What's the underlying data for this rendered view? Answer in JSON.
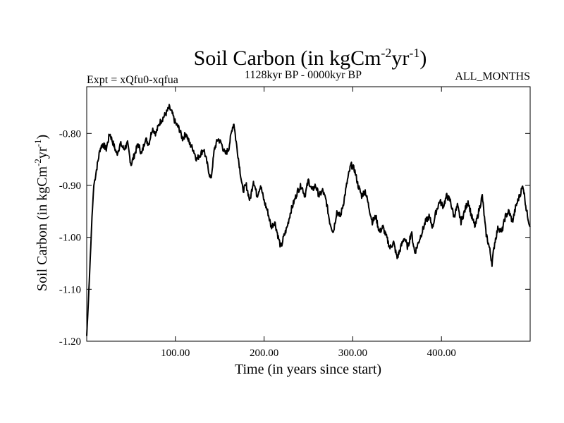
{
  "chart_data": {
    "type": "line",
    "title": "Soil Carbon (in kgCm",
    "title_sup1": "-2",
    "title_mid": "yr",
    "title_sup2": "-1",
    "title_end": ")",
    "subtitle_left": "Expt = xQfu0-xqfua",
    "subtitle_center": "1128kyr BP - 0000kyr BP",
    "subtitle_right": "ALL_MONTHS",
    "xlabel": "Time (in years since start)",
    "ylabel": "Soil Carbon (in kgCm",
    "ylabel_sup1": "-2",
    "ylabel_mid": "yr",
    "ylabel_sup2": "-1",
    "ylabel_end": ")",
    "xlim": [
      0,
      500
    ],
    "ylim": [
      -1.2,
      -0.71
    ],
    "x_ticks": [
      100,
      200,
      300,
      400
    ],
    "x_tick_labels": [
      "100.00",
      "200.00",
      "300.00",
      "400.00"
    ],
    "y_ticks": [
      -1.2,
      -1.1,
      -1.0,
      -0.9,
      -0.8
    ],
    "y_tick_labels": [
      "-1.20",
      "-1.10",
      "-1.00",
      "-0.90",
      "-0.80"
    ],
    "grid": false,
    "line_color": "#000000",
    "series": [
      {
        "name": "Soil Carbon",
        "x": [
          0,
          2,
          4,
          6,
          8,
          10,
          12,
          15,
          18,
          22,
          26,
          30,
          34,
          38,
          42,
          46,
          50,
          54,
          58,
          62,
          66,
          70,
          74,
          78,
          82,
          86,
          90,
          93,
          96,
          100,
          104,
          108,
          112,
          116,
          120,
          124,
          128,
          132,
          136,
          140,
          144,
          148,
          152,
          156,
          160,
          164,
          166,
          168,
          172,
          176,
          180,
          184,
          188,
          192,
          196,
          200,
          204,
          208,
          212,
          216,
          219,
          222,
          226,
          230,
          234,
          238,
          242,
          246,
          250,
          254,
          258,
          262,
          266,
          270,
          274,
          278,
          282,
          286,
          290,
          294,
          298,
          302,
          306,
          310,
          314,
          318,
          322,
          326,
          330,
          334,
          338,
          342,
          346,
          350,
          354,
          358,
          362,
          366,
          370,
          374,
          378,
          382,
          386,
          390,
          394,
          398,
          402,
          406,
          410,
          414,
          418,
          422,
          426,
          430,
          434,
          438,
          442,
          446,
          450,
          454,
          457,
          460,
          464,
          468,
          472,
          476,
          480,
          484,
          488,
          492,
          496,
          500
        ],
        "values": [
          -1.19,
          -1.12,
          -1.04,
          -0.96,
          -0.9,
          -0.88,
          -0.86,
          -0.83,
          -0.82,
          -0.83,
          -0.8,
          -0.82,
          -0.84,
          -0.82,
          -0.83,
          -0.82,
          -0.86,
          -0.84,
          -0.82,
          -0.84,
          -0.81,
          -0.82,
          -0.79,
          -0.8,
          -0.78,
          -0.77,
          -0.76,
          -0.75,
          -0.76,
          -0.78,
          -0.79,
          -0.81,
          -0.8,
          -0.82,
          -0.83,
          -0.85,
          -0.84,
          -0.83,
          -0.86,
          -0.89,
          -0.83,
          -0.81,
          -0.82,
          -0.84,
          -0.83,
          -0.79,
          -0.78,
          -0.81,
          -0.86,
          -0.91,
          -0.9,
          -0.93,
          -0.89,
          -0.92,
          -0.9,
          -0.93,
          -0.95,
          -0.98,
          -0.97,
          -1.0,
          -1.02,
          -1.0,
          -0.98,
          -0.95,
          -0.93,
          -0.91,
          -0.9,
          -0.92,
          -0.89,
          -0.91,
          -0.9,
          -0.92,
          -0.91,
          -0.93,
          -0.97,
          -0.99,
          -0.95,
          -0.96,
          -0.93,
          -0.89,
          -0.86,
          -0.87,
          -0.9,
          -0.92,
          -0.91,
          -0.94,
          -0.97,
          -0.96,
          -0.99,
          -0.98,
          -1.0,
          -1.02,
          -1.01,
          -1.04,
          -1.02,
          -1.0,
          -1.02,
          -0.99,
          -1.03,
          -1.01,
          -0.99,
          -0.97,
          -0.96,
          -0.98,
          -0.95,
          -0.93,
          -0.94,
          -0.92,
          -0.93,
          -0.96,
          -0.94,
          -0.97,
          -0.95,
          -0.93,
          -0.96,
          -0.98,
          -0.95,
          -0.92,
          -0.99,
          -1.02,
          -1.05,
          -1.01,
          -0.98,
          -0.99,
          -0.96,
          -0.95,
          -0.97,
          -0.94,
          -0.92,
          -0.9,
          -0.95,
          -0.98
        ]
      }
    ]
  }
}
